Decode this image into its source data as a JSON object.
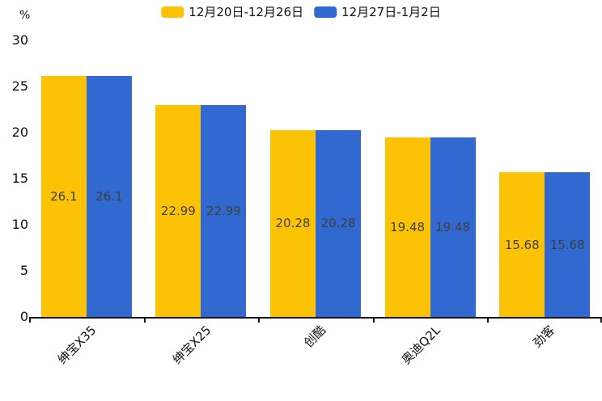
{
  "chart_data": {
    "type": "bar",
    "title": "",
    "unit_label": "%",
    "categories": [
      "绅宝X35",
      "绅宝X25",
      "创酷",
      "奥迪Q2L",
      "劲客"
    ],
    "series": [
      {
        "name": "12月20日-12月26日",
        "color": "#FCC306",
        "values": [
          26.1,
          22.99,
          20.28,
          19.48,
          15.68
        ]
      },
      {
        "name": "12月27日-1月2日",
        "color": "#3169D0",
        "values": [
          26.1,
          22.99,
          20.28,
          19.48,
          15.68
        ]
      }
    ],
    "value_labels": [
      "26.1",
      "22.99",
      "20.28",
      "19.48",
      "15.68"
    ],
    "ylim": [
      0,
      30
    ],
    "yticks": [
      0,
      5,
      10,
      15,
      20,
      25,
      30
    ],
    "grid": false,
    "legend_position": "top",
    "value_label_placement": "inside-middle"
  },
  "colors": {
    "axis": "#161616",
    "tick_text": "#111111",
    "value_text": "#3f3f3f"
  }
}
